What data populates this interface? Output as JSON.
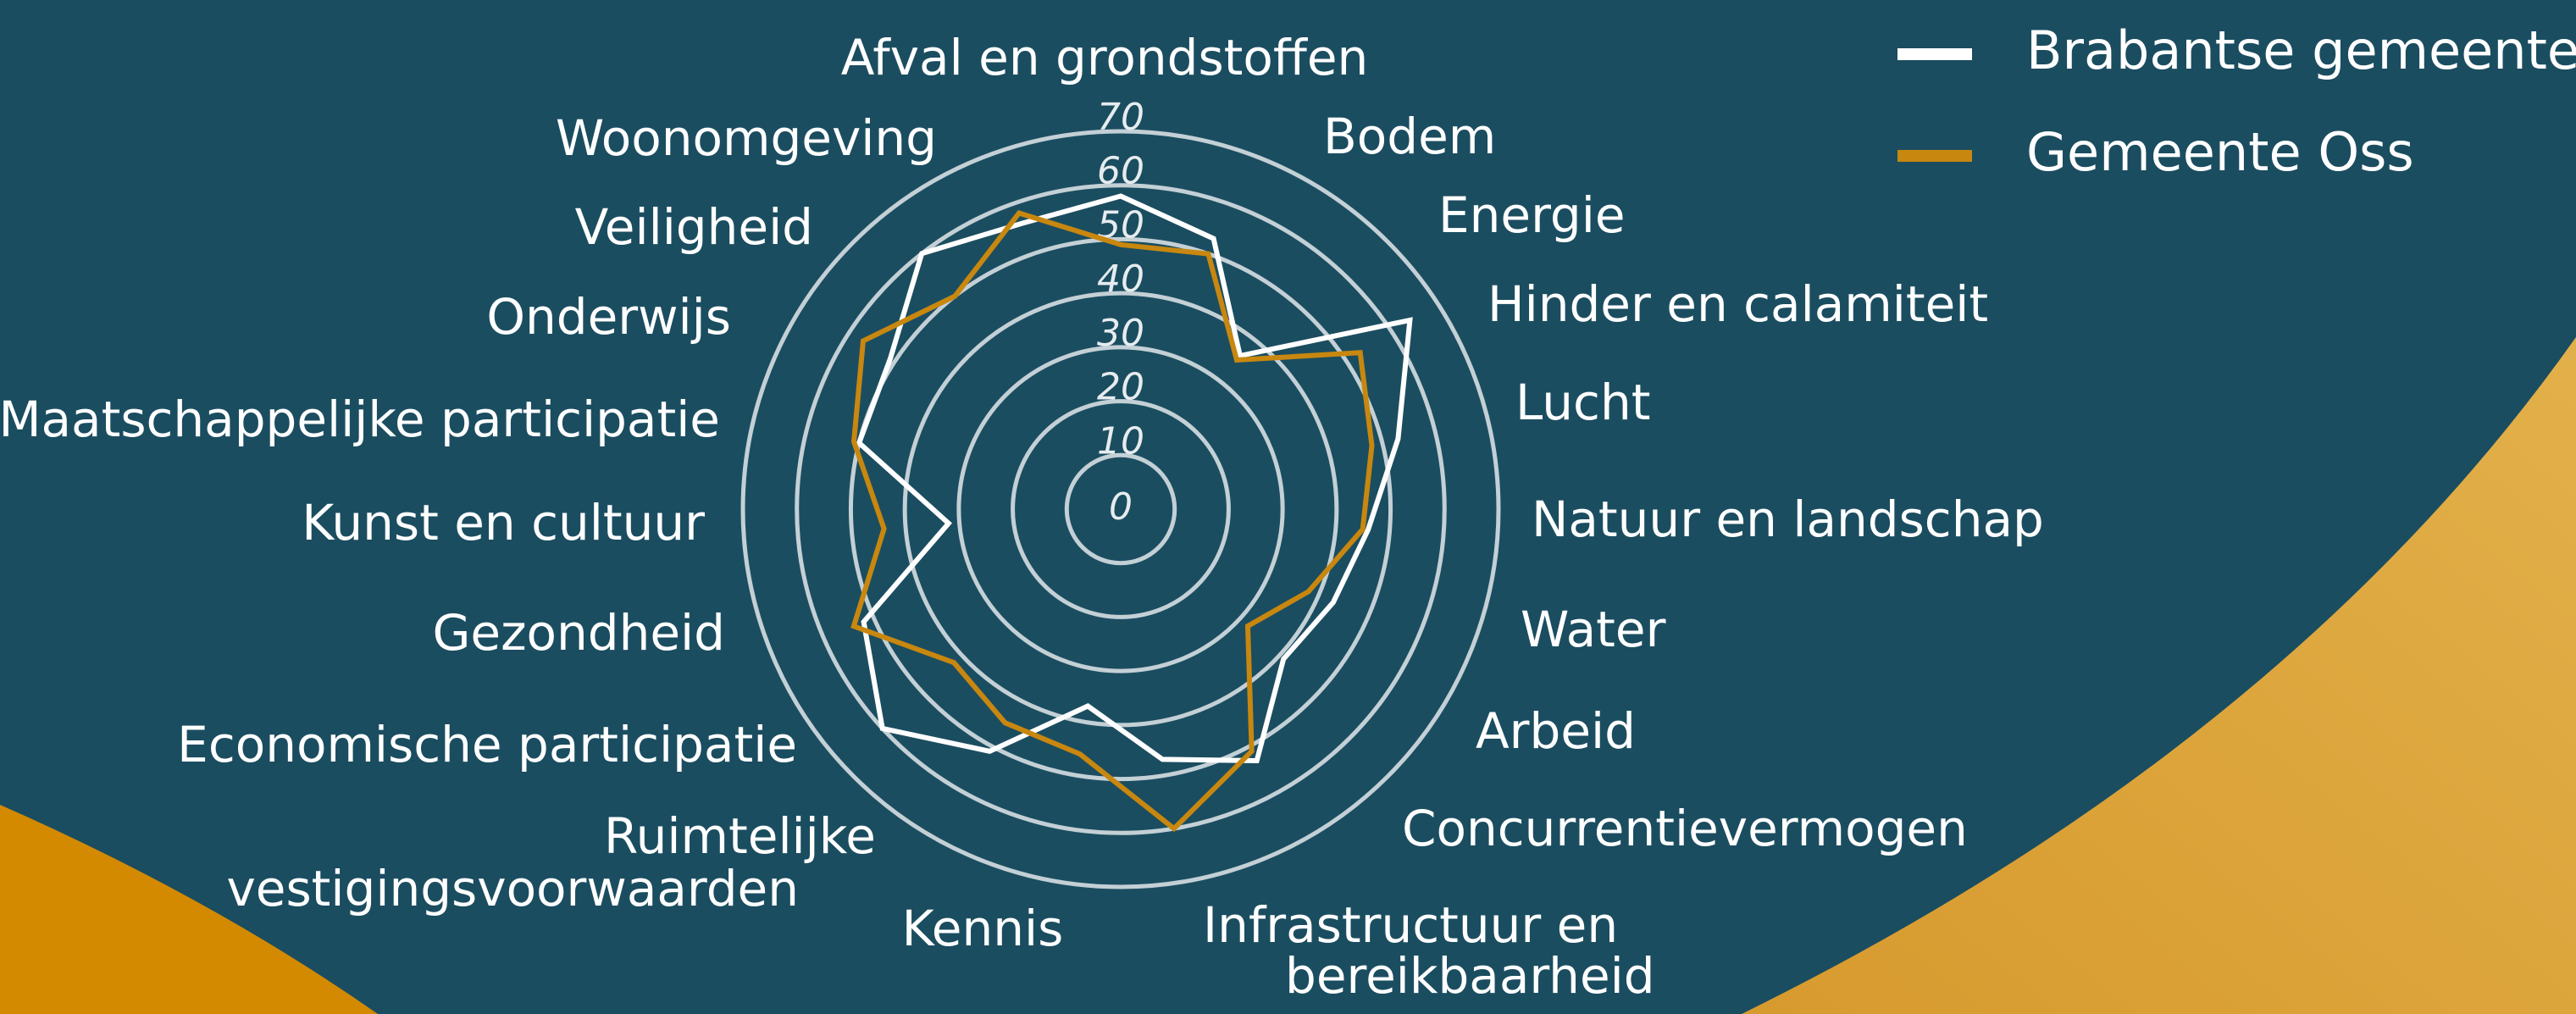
{
  "chart_data": {
    "type": "radar",
    "categories": [
      "Afval en grondstoffen",
      "Bodem",
      "Energie",
      "Hinder en calamiteit",
      "Lucht",
      "Natuur en landschap",
      "Water",
      "Arbeid",
      "Concurrentievermogen",
      "Infrastructuur en\nbereikbaarheid",
      "Kennis",
      "Ruimtelijke\nvestigingsvoorwaarden",
      "Economische participatie",
      "Gezondheid",
      "Kunst en cultuur",
      "Maatschappelijke participatie",
      "Onderwijs",
      "Veiligheid",
      "Woonomgeving"
    ],
    "series": [
      {
        "name": "Brabantse gemeenten",
        "color": "#ffffff",
        "values": [
          58,
          53,
          36,
          64,
          53,
          46,
          43,
          41,
          53,
          47,
          37,
          51,
          60,
          52,
          32,
          50,
          51,
          60,
          56
        ]
      },
      {
        "name": "Gemeente Oss",
        "color": "#c8870f",
        "values": [
          49,
          50,
          35,
          53,
          48,
          45,
          38,
          32,
          51,
          60,
          46,
          45,
          42,
          54,
          44,
          51,
          57,
          50,
          58
        ]
      }
    ],
    "ylim": [
      0,
      70
    ],
    "yticks": [
      0,
      10,
      20,
      30,
      40,
      50,
      60,
      70
    ],
    "grid": true,
    "legend": "top-right"
  }
}
